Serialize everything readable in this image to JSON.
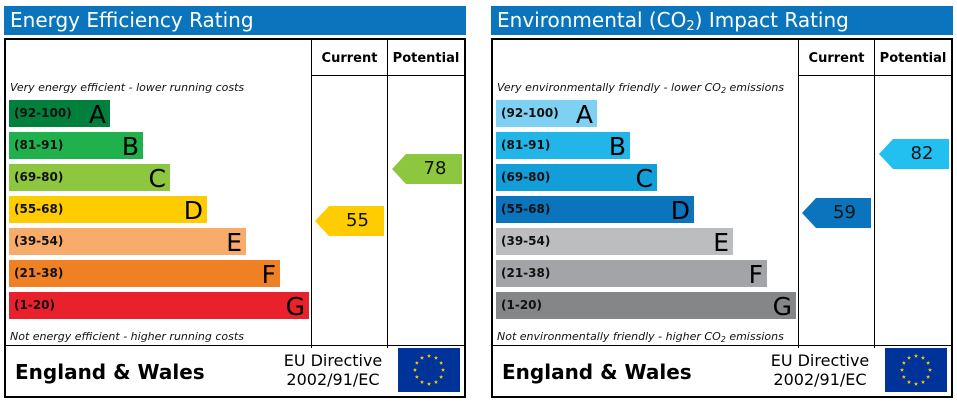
{
  "energy": {
    "title": "Energy Efficiency Rating",
    "col_current": "Current",
    "col_potential": "Potential",
    "top_caption": "Very energy efficient - lower running costs",
    "bottom_caption": "Not energy efficient - higher running costs",
    "bands": [
      {
        "range": "(92-100)",
        "letter": "A",
        "color": "#007f3d"
      },
      {
        "range": "(81-91)",
        "letter": "B",
        "color": "#20b14c"
      },
      {
        "range": "(69-80)",
        "letter": "C",
        "color": "#8dc63f"
      },
      {
        "range": "(55-68)",
        "letter": "D",
        "color": "#ffcc00"
      },
      {
        "range": "(39-54)",
        "letter": "E",
        "color": "#f7ac6b"
      },
      {
        "range": "(21-38)",
        "letter": "F",
        "color": "#ef8023"
      },
      {
        "range": "(1-20)",
        "letter": "G",
        "color": "#e9212d"
      }
    ],
    "current": {
      "value": "55",
      "color": "#ffcc00"
    },
    "potential": {
      "value": "78",
      "color": "#8dc63f"
    },
    "country": "England & Wales",
    "directive_line1": "EU Directive",
    "directive_line2": "2002/91/EC"
  },
  "environmental": {
    "title_prefix": "Environmental (CO",
    "title_sub": "2",
    "title_suffix": ") Impact Rating",
    "col_current": "Current",
    "col_potential": "Potential",
    "top_caption_prefix": "Very environmentally friendly - lower CO",
    "top_caption_sub": "2",
    "top_caption_suffix": " emissions",
    "bottom_caption_prefix": "Not environmentally friendly - higher CO",
    "bottom_caption_sub": "2",
    "bottom_caption_suffix": " emissions",
    "bands": [
      {
        "range": "(92-100)",
        "letter": "A",
        "color": "#7fd1f4"
      },
      {
        "range": "(81-91)",
        "letter": "B",
        "color": "#21b5e8"
      },
      {
        "range": "(69-80)",
        "letter": "C",
        "color": "#129fd9"
      },
      {
        "range": "(55-68)",
        "letter": "D",
        "color": "#0a75bd"
      },
      {
        "range": "(39-54)",
        "letter": "E",
        "color": "#bbbdbf"
      },
      {
        "range": "(21-38)",
        "letter": "F",
        "color": "#a2a4a7"
      },
      {
        "range": "(1-20)",
        "letter": "G",
        "color": "#858688"
      }
    ],
    "current": {
      "value": "59",
      "color": "#0a75bd"
    },
    "potential": {
      "value": "82",
      "color": "#21c0f0"
    },
    "country": "England & Wales",
    "directive_line1": "EU Directive",
    "directive_line2": "2002/91/EC"
  },
  "flag": {
    "background": "#003399",
    "star_color": "#ffcc00"
  }
}
